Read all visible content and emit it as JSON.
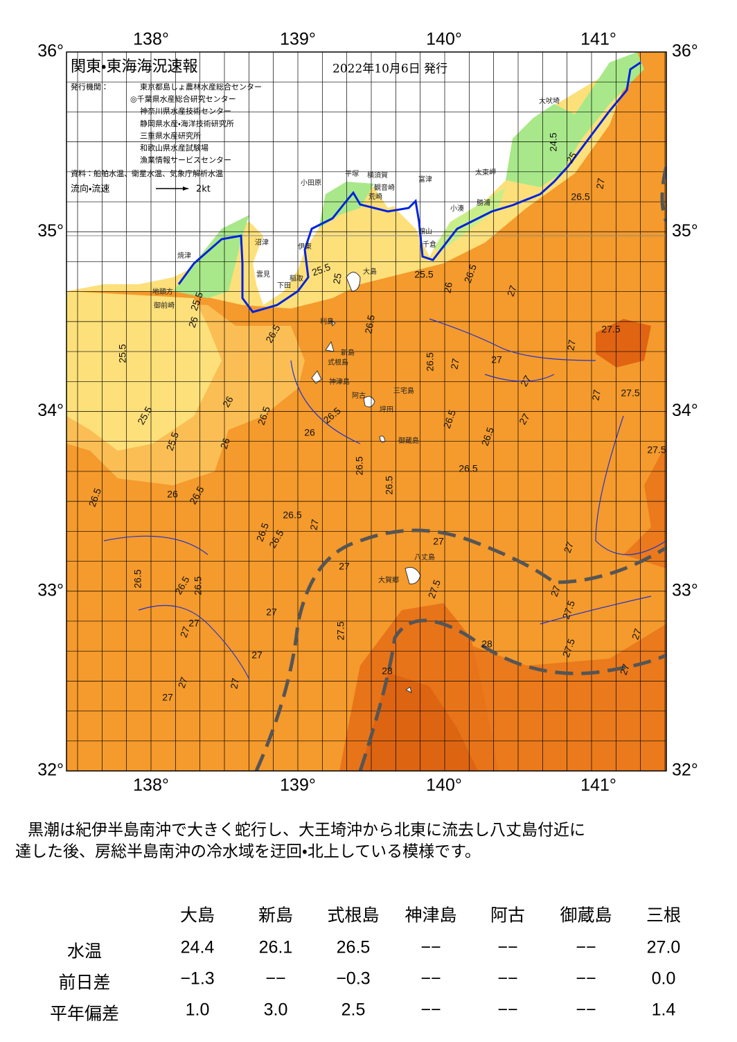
{
  "map": {
    "title": "関東・東海海況速報",
    "date": "2022年10月6日 発行",
    "issuers_label": "発行機関：",
    "issuers": [
      "東京都島しょ農林水産総合センター",
      "◎千葉県水産総合研究センター",
      "神奈川県水産技術センター",
      "静岡県水産・海洋技術研究所",
      "三重県水産研究所",
      "和歌山県水産試験場",
      "漁業情報サービスセンター"
    ],
    "sources": "資料：船舶水温、衛星水温、気象庁解析水温",
    "legend": "流向・流速",
    "legend_scale": "2kt",
    "lon_labels": [
      "138°",
      "139°",
      "140°",
      "141°"
    ],
    "lat_labels": [
      "36°",
      "35°",
      "34°",
      "33°",
      "32°"
    ],
    "places": [
      "大吠埼",
      "太東岬",
      "勝浦",
      "小湊",
      "館山",
      "千倉",
      "富津",
      "観音崎",
      "横須賀",
      "荒崎",
      "平塚",
      "小田原",
      "伊東",
      "沼津",
      "焼津",
      "稲取",
      "下田",
      "雲見",
      "大島",
      "地頭方",
      "御前崎",
      "利島",
      "新島",
      "式根島",
      "神津島",
      "三宅島",
      "阿古",
      "坪田",
      "御蔵島",
      "八丈島",
      "大賀郷"
    ],
    "contour_labels": [
      "24.5",
      "25",
      "26.5",
      "27",
      "25.5",
      "26.5",
      "26",
      "27",
      "25.5",
      "25",
      "25.5",
      "26",
      "26.5",
      "26.5",
      "25.5",
      "27.5",
      "27",
      "26.5",
      "27",
      "27",
      "27",
      "27",
      "27.5",
      "25.5",
      "26",
      "26.5",
      "26.5",
      "26",
      "26.5",
      "27",
      "26.5",
      "25.5",
      "26",
      "27.5",
      "26.5",
      "26.5",
      "26.5",
      "26.5",
      "26",
      "26.5",
      "26.5",
      "27",
      "26.5",
      "26.5",
      "27",
      "27",
      "27",
      "26.5",
      "26.5",
      "26.5",
      "27.5",
      "27",
      "27.5",
      "27",
      "27",
      "27",
      "27.5",
      "28",
      "27.5",
      "27",
      "27",
      "27",
      "28",
      "27",
      "27",
      "27"
    ]
  },
  "description": [
    "黒潮は紀伊半島南沖で大きく蛇行し、大王埼沖から北東に流去し八丈島付近に",
    "達した後、房総半島南沖の冷水域を迂回・北上している模様です。"
  ],
  "table": {
    "header": [
      "大島",
      "新島",
      "式根島",
      "神津島",
      "阿古",
      "御蔵島",
      "三根"
    ],
    "rows": [
      {
        "label": "水温",
        "cells": [
          "24.4",
          "26.1",
          "26.5",
          "−−",
          "−−",
          "−−",
          "27.0"
        ]
      },
      {
        "label": "前日差",
        "cells": [
          "−1.3",
          "−−",
          "−0.3",
          "−−",
          "−−",
          "−−",
          "0.0"
        ]
      },
      {
        "label": "平年偏差",
        "cells": [
          "1.0",
          "3.0",
          "2.5",
          "−−",
          "−−",
          "−−",
          "1.4"
        ]
      }
    ]
  }
}
